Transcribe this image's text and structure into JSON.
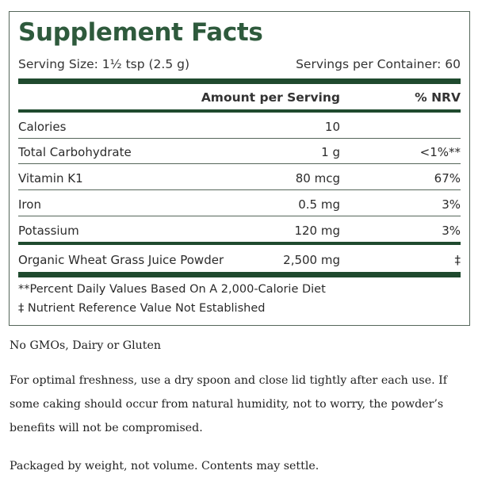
{
  "panel": {
    "title": "Supplement Facts",
    "serving_size": "Serving Size: 1½ tsp (2.5 g)",
    "servings_per_container": "Servings per Container: 60",
    "header": {
      "amount": "Amount per Serving",
      "nrv": "% NRV"
    },
    "rows": [
      {
        "name": "Calories",
        "amount": "10",
        "nrv": ""
      },
      {
        "name": "Total Carbohydrate",
        "amount": "1 g",
        "nrv": "<1%**"
      },
      {
        "name": "Vitamin K1",
        "amount": "80 mcg",
        "nrv": "67%"
      },
      {
        "name": "Iron",
        "amount": "0.5 mg",
        "nrv": "3%"
      },
      {
        "name": "Potassium",
        "amount": "120 mg",
        "nrv": "3%"
      },
      {
        "name": "Organic Wheat Grass Juice Powder",
        "amount": "2,500 mg",
        "nrv": "‡"
      }
    ],
    "footnotes": [
      "**Percent Daily Values Based On A 2,000-Calorie Diet",
      "‡ Nutrient Reference Value Not Established"
    ]
  },
  "notes": {
    "allergen": "No GMOs, Dairy or Gluten",
    "freshness": "For optimal freshness, use a dry spoon and close lid tightly after each use. If some caking should occur from natural humidity, not to worry, the powder’s benefits will not be compromised.",
    "packaging": "Packaged by weight, not volume. Contents may settle."
  },
  "colors": {
    "title_green": "#2e5a3c",
    "bar_green": "#1f4a2e",
    "border": "#55665a"
  }
}
